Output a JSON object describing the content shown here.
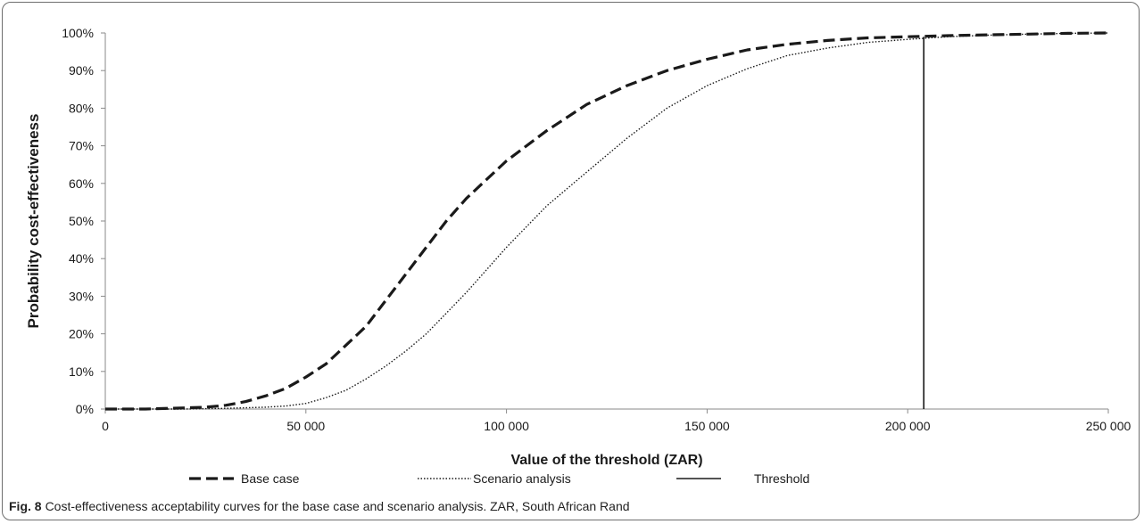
{
  "chart_data": {
    "type": "line",
    "xlabel": "Value of the threshold (ZAR)",
    "ylabel": "Probability cost-effectiveness",
    "xlim": [
      0,
      250000
    ],
    "ylim": [
      0,
      100
    ],
    "x_ticks": [
      0,
      50000,
      100000,
      150000,
      200000,
      250000
    ],
    "x_tick_labels": [
      "0",
      "50 000",
      "100 000",
      "150 000",
      "200 000",
      "250 000"
    ],
    "y_ticks": [
      0,
      10,
      20,
      30,
      40,
      50,
      60,
      70,
      80,
      90,
      100
    ],
    "y_tick_labels": [
      "0%",
      "10%",
      "20%",
      "30%",
      "40%",
      "50%",
      "60%",
      "70%",
      "80%",
      "90%",
      "100%"
    ],
    "grid": false,
    "legend_position": "bottom",
    "series": [
      {
        "name": "Base case",
        "style": "dashed",
        "color": "#1a1a1a",
        "x": [
          0,
          10000,
          20000,
          25000,
          30000,
          35000,
          40000,
          45000,
          50000,
          55000,
          60000,
          65000,
          70000,
          75000,
          80000,
          85000,
          90000,
          95000,
          100000,
          110000,
          120000,
          130000,
          140000,
          150000,
          160000,
          170000,
          180000,
          190000,
          200000,
          210000,
          220000,
          230000,
          240000,
          250000
        ],
        "y": [
          0,
          0,
          0.3,
          0.5,
          1,
          2,
          3.5,
          5.5,
          8.5,
          12,
          17,
          22,
          29,
          36,
          43,
          50,
          56,
          61,
          66,
          74,
          81,
          86,
          90,
          93,
          95.5,
          97,
          98,
          98.7,
          99,
          99.3,
          99.5,
          99.7,
          99.9,
          100
        ]
      },
      {
        "name": "Scenario analysis",
        "style": "dotted",
        "color": "#1a1a1a",
        "x": [
          0,
          20000,
          30000,
          40000,
          45000,
          50000,
          55000,
          60000,
          65000,
          70000,
          75000,
          80000,
          85000,
          90000,
          95000,
          100000,
          110000,
          120000,
          130000,
          140000,
          150000,
          160000,
          170000,
          180000,
          190000,
          200000,
          210000,
          220000,
          230000,
          240000,
          250000
        ],
        "y": [
          0,
          0,
          0.2,
          0.5,
          0.8,
          1.5,
          3,
          5,
          8,
          11.5,
          15.5,
          20,
          25.5,
          31,
          37,
          43,
          54,
          63,
          72,
          80,
          86,
          90.5,
          94,
          96,
          97.5,
          98.3,
          99,
          99.4,
          99.7,
          99.9,
          100
        ]
      },
      {
        "name": "Threshold",
        "style": "solid",
        "color": "#1a1a1a",
        "x": [
          204000,
          204000
        ],
        "y": [
          0,
          99
        ]
      }
    ]
  },
  "caption": {
    "label": "Fig. 8",
    "text": "Cost-effectiveness acceptability curves for the base case and scenario analysis. ZAR, South African Rand"
  }
}
